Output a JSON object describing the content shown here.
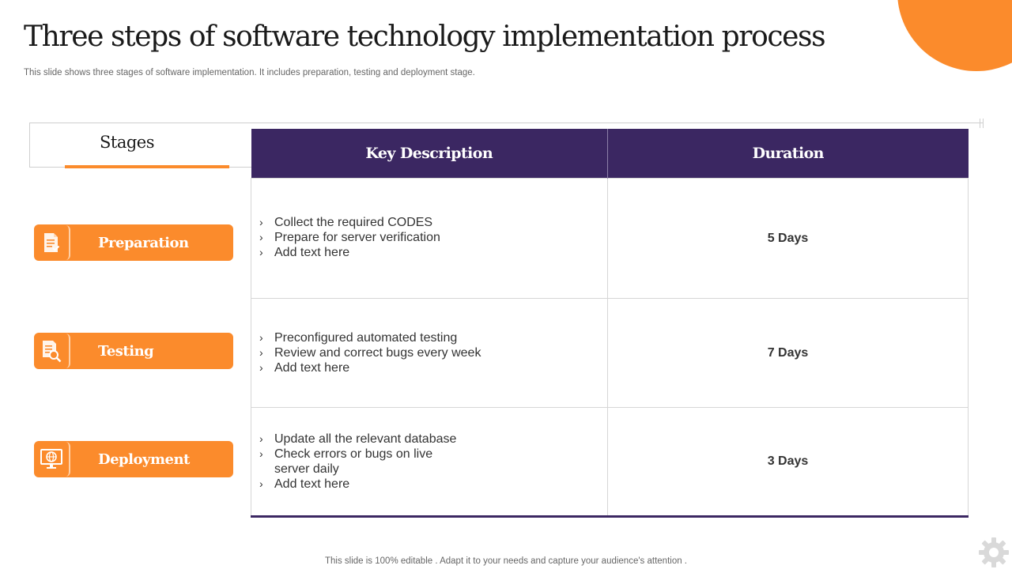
{
  "slide": {
    "title": "Three steps of software technology implementation process",
    "subtitle": "This slide shows three stages of software implementation. It includes preparation, testing and deployment stage.",
    "footer": "This slide is 100% editable . Adapt it to your needs and capture your audience's attention ."
  },
  "stages_header": "Stages",
  "table": {
    "headers": [
      "Key Description",
      "Duration"
    ]
  },
  "stages": [
    {
      "label": "Preparation",
      "icon": "document-check-icon",
      "description": [
        "Collect the required CODES",
        "Prepare for server verification",
        "Add text here"
      ],
      "duration": "5 Days"
    },
    {
      "label": "Testing",
      "icon": "document-search-icon",
      "description": [
        "Preconfigured automated testing",
        "Review and correct  bugs every week",
        "Add text here"
      ],
      "duration": "7 Days"
    },
    {
      "label": "Deployment",
      "icon": "monitor-globe-icon",
      "description": [
        "Update all the relevant database",
        "Check errors or bugs on live",
        "server daily",
        "Add text here"
      ],
      "duration": "3 Days"
    }
  ],
  "colors": {
    "accent": "#fb8b2c",
    "header": "#3b2762"
  }
}
